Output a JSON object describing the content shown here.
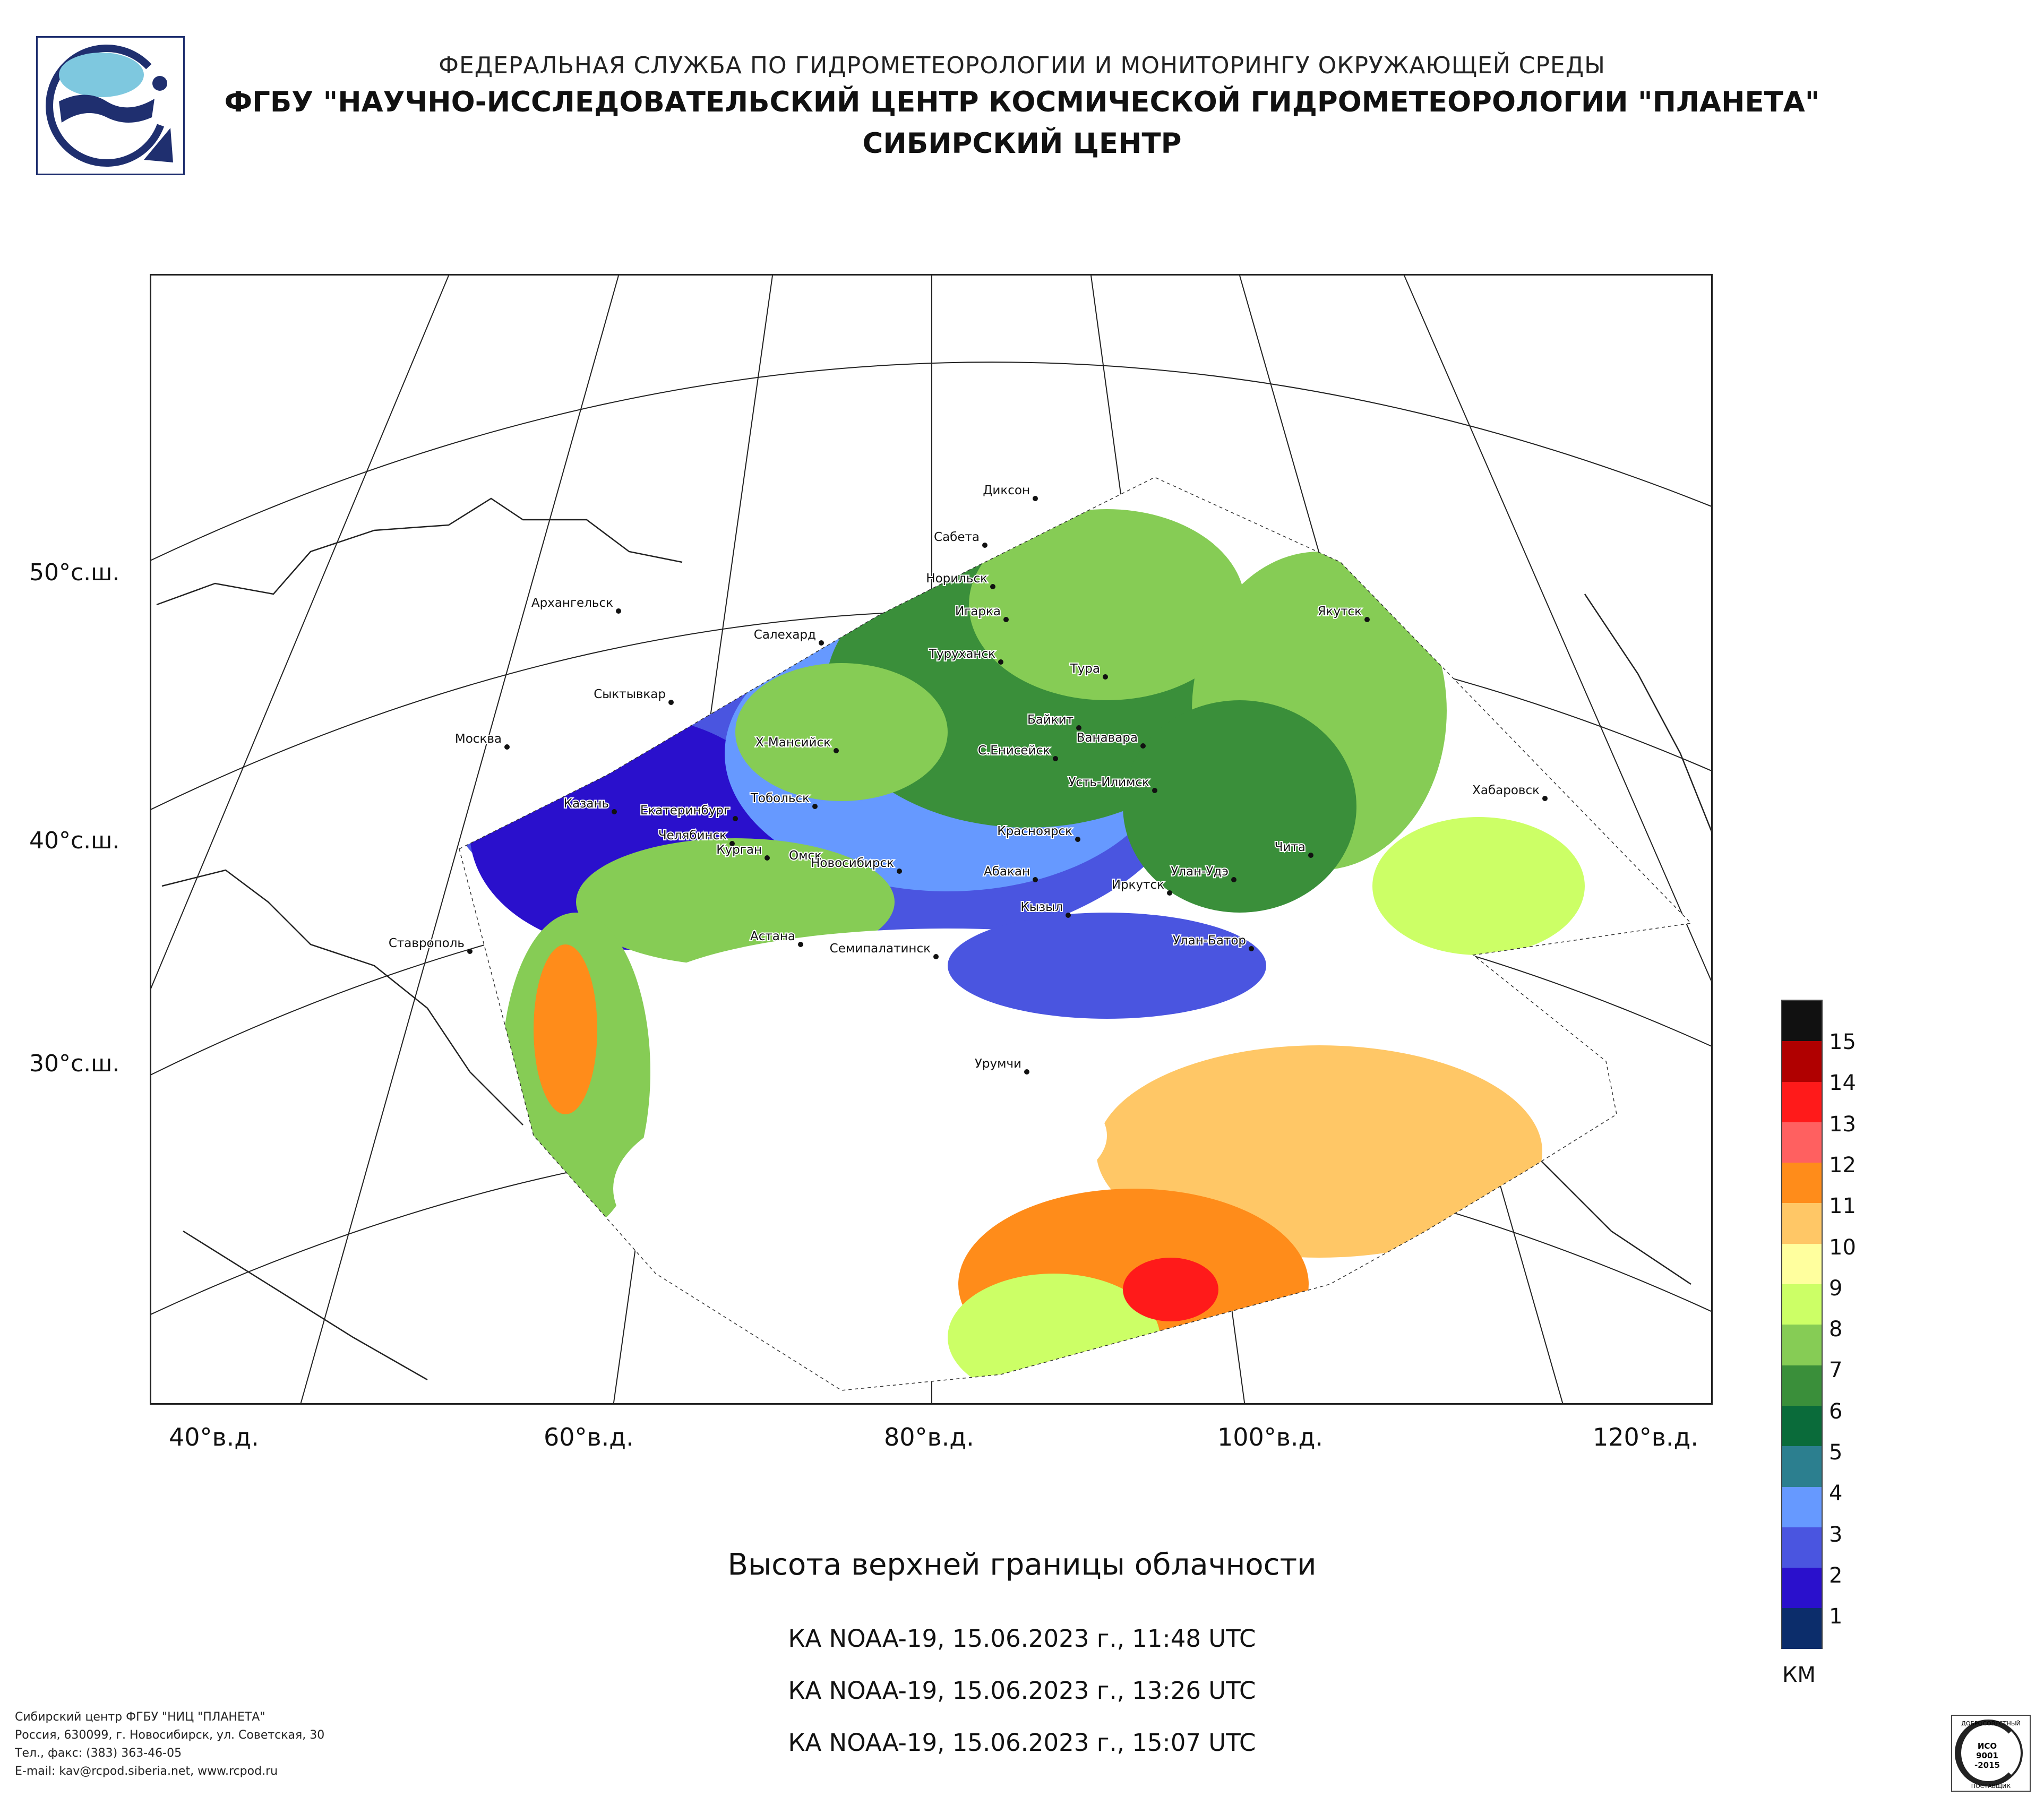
{
  "header": {
    "line1": "ФЕДЕРАЛЬНАЯ СЛУЖБА ПО ГИДРОМЕТЕОРОЛОГИИ И МОНИТОРИНГУ ОКРУЖАЮЩЕЙ СРЕДЫ",
    "line2": "ФГБУ \"НАУЧНО-ИССЛЕДОВАТЕЛЬСКИЙ ЦЕНТР КОСМИЧЕСКОЙ ГИДРОМЕТЕОРОЛОГИИ \"ПЛАНЕТА\"",
    "line3": "СИБИРСКИЙ ЦЕНТР"
  },
  "map": {
    "lat_labels": [
      "50°с.ш.",
      "40°с.ш.",
      "30°с.ш."
    ],
    "lon_labels": [
      "40°в.д.",
      "60°в.д.",
      "80°в.д.",
      "100°в.д.",
      "120°в.д."
    ],
    "cities": [
      "Диксон",
      "Сабета",
      "Норильск",
      "Архангельск",
      "Игарка",
      "Салехард",
      "Туруханск",
      "Якутск",
      "Тура",
      "Сыктывкар",
      "Байкит",
      "Ванавара",
      "Москва",
      "Х-Мансийск",
      "С.Енисейск",
      "Усть-Илимск",
      "Хабаровск",
      "Казань",
      "Екатеринбург",
      "Тобольск",
      "Красноярск",
      "Челябинск",
      "Чита",
      "Курган",
      "Омск",
      "Новосибирск",
      "Абакан",
      "Улан-Удэ",
      "Иркутск",
      "Кызыл",
      "Ставрополь",
      "Астана",
      "Семипалатинск",
      "Улан-Батор",
      "Урумчи"
    ]
  },
  "title": "Высота верхней границы облачности",
  "passes": [
    "КА NOAA-19, 15.06.2023 г., 11:48 UTC",
    "КА NOAA-19, 15.06.2023 г., 13:26 UTC",
    "КА NOAA-19, 15.06.2023 г., 15:07 UTC"
  ],
  "legend": {
    "unit": "КМ",
    "ticks": [
      "15",
      "14",
      "13",
      "12",
      "11",
      "10",
      "9",
      "8",
      "7",
      "6",
      "5",
      "4",
      "3",
      "2",
      "1"
    ],
    "colors": [
      "#111111",
      "#b00000",
      "#ff1a1a",
      "#ff6060",
      "#ff8c1a",
      "#ffc766",
      "#ffff9e",
      "#ccff66",
      "#86cc55",
      "#3a8f3a",
      "#0a6b3a",
      "#2c7f8f",
      "#6699ff",
      "#4a55e0",
      "#2a10cc",
      "#0c2d6b"
    ]
  },
  "footer": {
    "line1": "Сибирский центр ФГБУ \"НИЦ \"ПЛАНЕТА\"",
    "line2": "Россия, 630099, г. Новосибирск, ул. Советская, 30",
    "line3": "Тел., факс: (383) 363-46-05",
    "line4": "E-mail: kav@rcpod.siberia.net, www.rcpod.ru"
  },
  "iso_badge": {
    "top": "ДОБРОСОВЕСТНЫЙ",
    "l1": "ИСО",
    "l2": "9001",
    "l3": "-2015",
    "bottom": "ПОСТАВЩИК"
  }
}
